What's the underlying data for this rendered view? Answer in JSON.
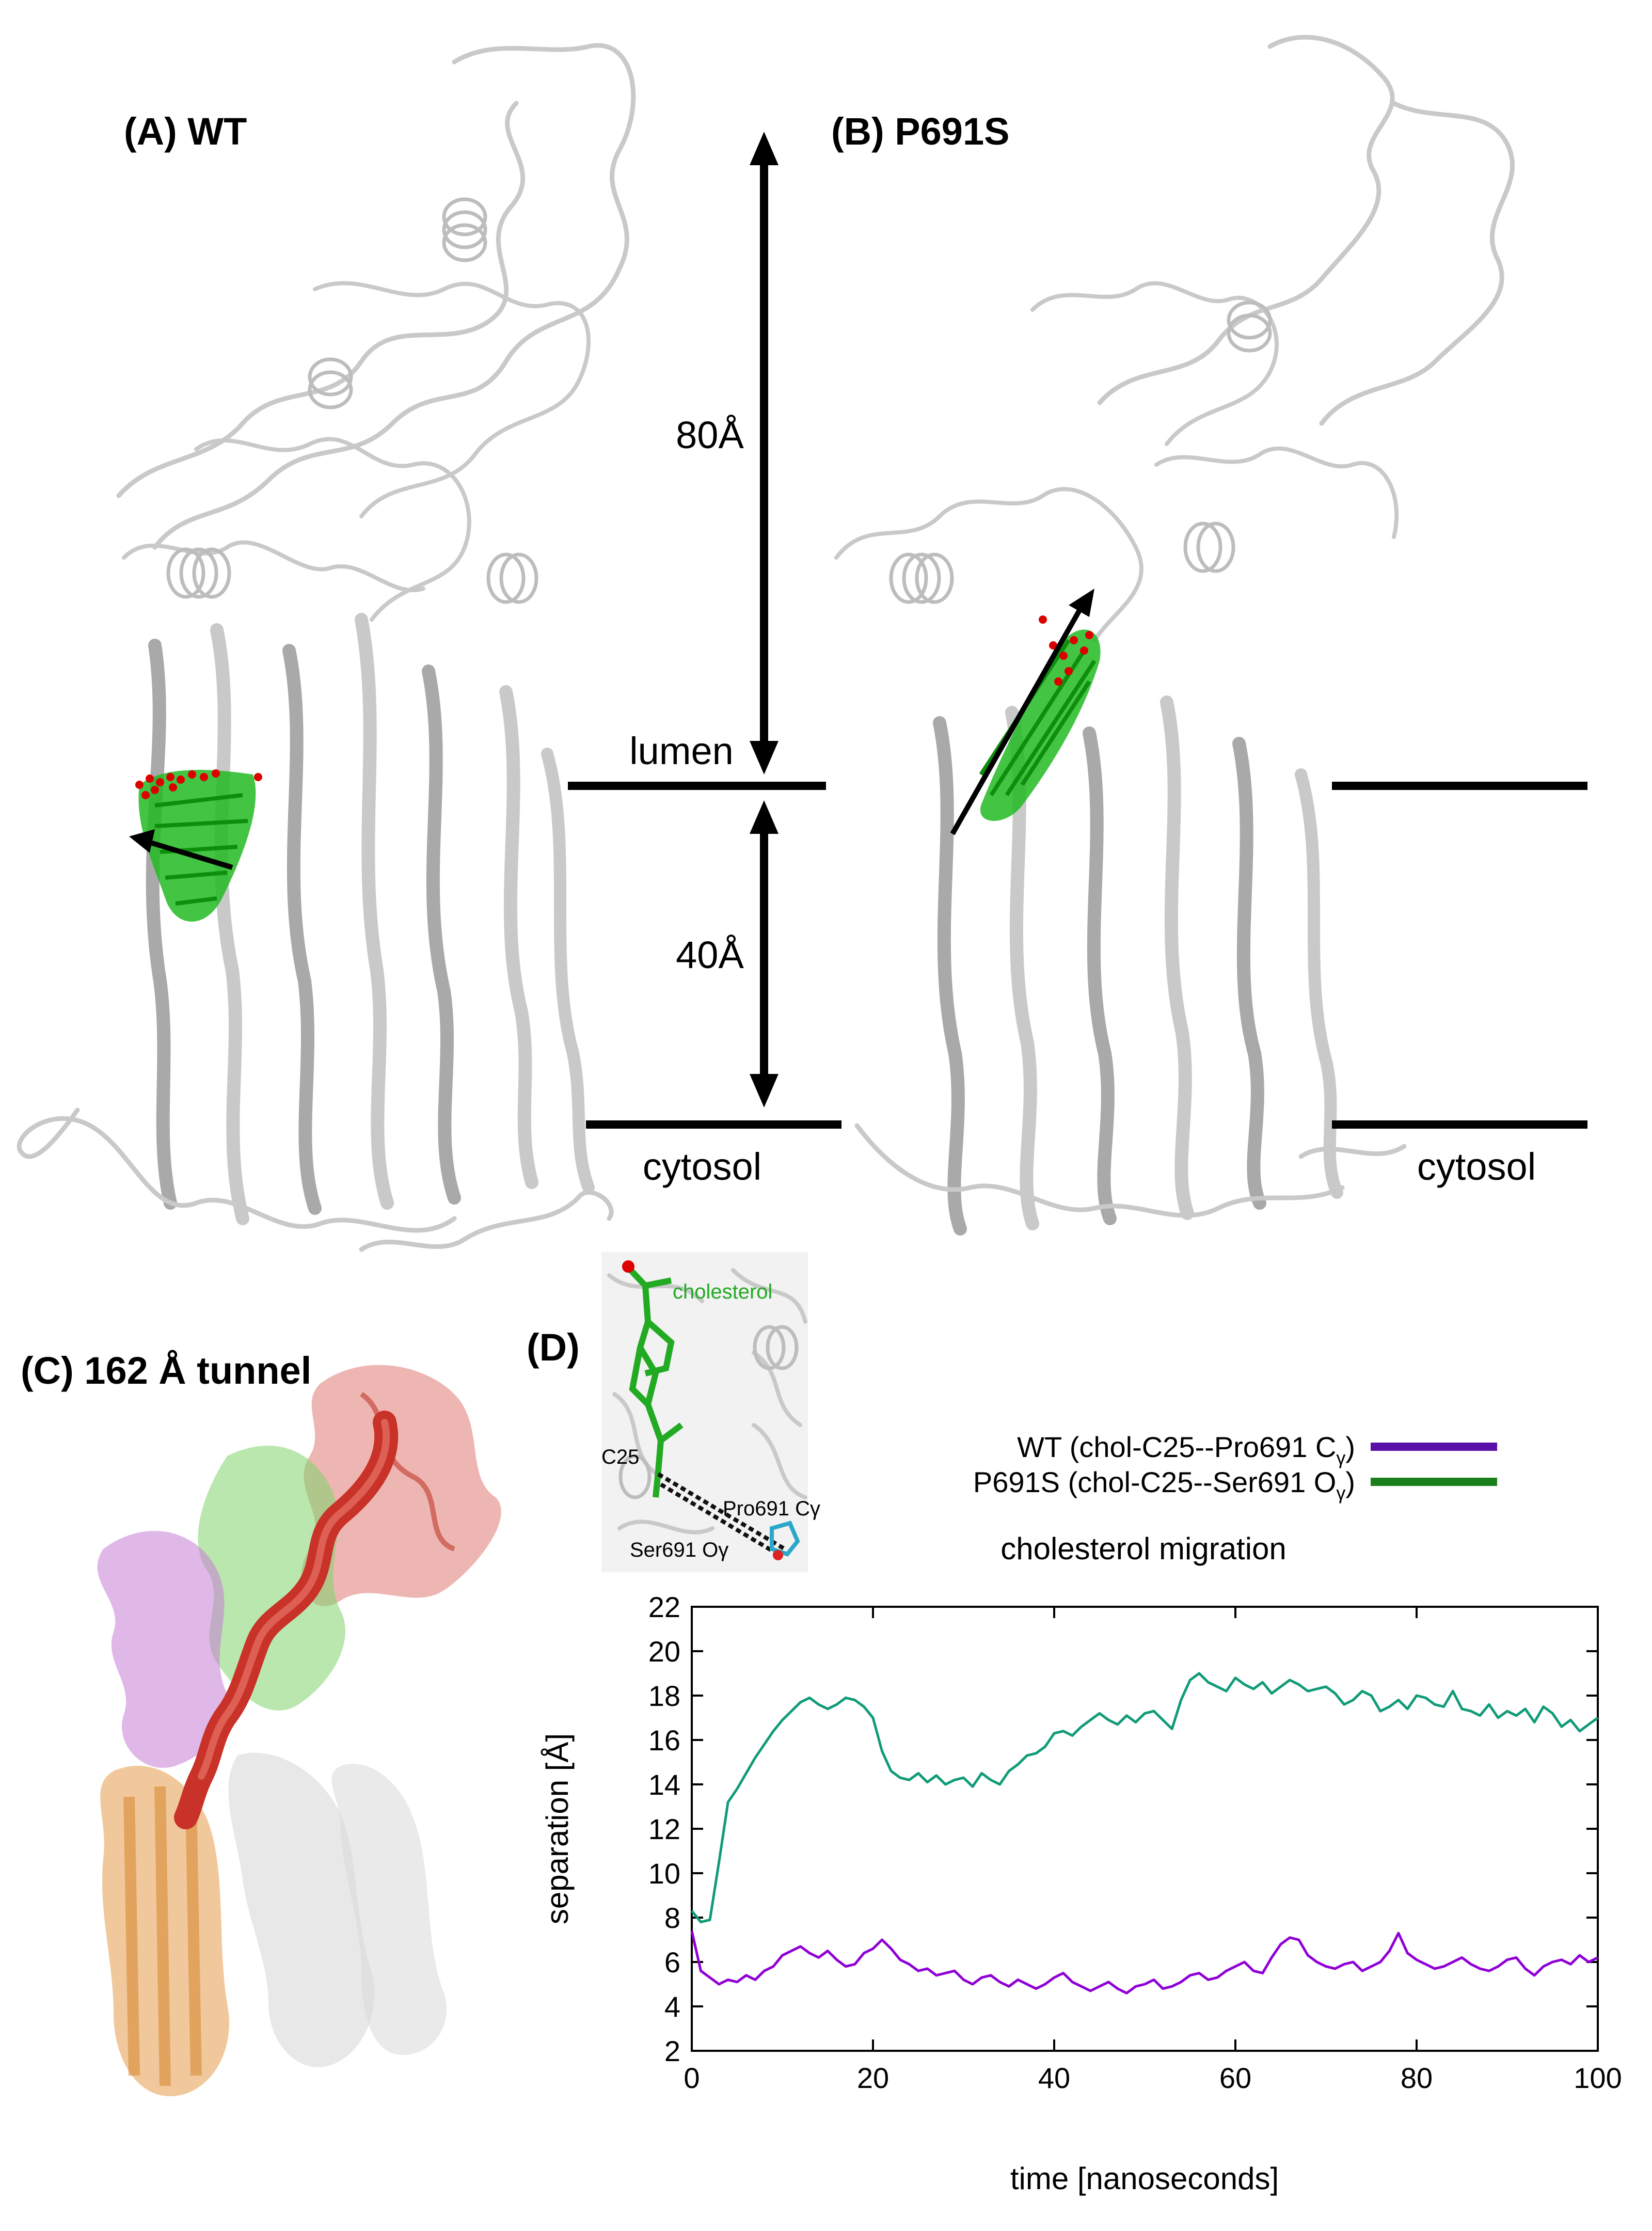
{
  "panels": {
    "a": {
      "label": "(A)  WT"
    },
    "b": {
      "label": "(B)  P691S"
    },
    "c": {
      "label": "(C) 162 Å tunnel"
    },
    "d": {
      "label": "(D)"
    }
  },
  "annotations": {
    "dist_80": "80Å",
    "dist_40": "40Å",
    "lumen": "lumen",
    "cytosol_left": "cytosol",
    "cytosol_right": "cytosol"
  },
  "inset": {
    "cholesterol": "cholesterol",
    "c25": "C25",
    "pro691": "Pro691 Cγ",
    "ser691": "Ser691 Oγ"
  },
  "colors": {
    "cholesterol_green": "#22bb22",
    "oxygen_red": "#dd0000",
    "protein_gray": "#c8c8c8",
    "tunnel_red": "#c83228",
    "domain_green": "#66cc55",
    "domain_magenta": "#bb66cc",
    "domain_orange": "#e6a458",
    "wt_line": "#8f00d6",
    "p691s_line": "#119b78"
  },
  "chart_data": {
    "type": "line",
    "title": "cholesterol migration",
    "xlabel": "time  [nanoseconds]",
    "ylabel": "separation [Å]",
    "xlim": [
      0,
      100
    ],
    "ylim": [
      2,
      22
    ],
    "xticks": [
      0,
      20,
      40,
      60,
      80,
      100
    ],
    "yticks": [
      2,
      4,
      6,
      8,
      10,
      12,
      14,
      16,
      18,
      20,
      22
    ],
    "grid": false,
    "legend_position": "above plot, right",
    "legend": [
      {
        "prefix": "WT (chol-C25--Pro691 C",
        "sub": "γ",
        "suffix": ")",
        "color": "#5a0fa8"
      },
      {
        "prefix": "P691S (chol-C25--Ser691 O",
        "sub": "γ",
        "suffix": ")",
        "color": "#1a7f1a"
      }
    ],
    "series": [
      {
        "color": "#119b78",
        "x": [
          0,
          1,
          2,
          3,
          4,
          5,
          6,
          7,
          8,
          9,
          10,
          11,
          12,
          13,
          14,
          15,
          16,
          17,
          18,
          19,
          20,
          21,
          22,
          23,
          24,
          25,
          26,
          27,
          28,
          29,
          30,
          31,
          32,
          33,
          34,
          35,
          36,
          37,
          38,
          39,
          40,
          41,
          42,
          43,
          44,
          45,
          46,
          47,
          48,
          49,
          50,
          51,
          52,
          53,
          54,
          55,
          56,
          57,
          58,
          59,
          60,
          61,
          62,
          63,
          64,
          65,
          66,
          67,
          68,
          69,
          70,
          71,
          72,
          73,
          74,
          75,
          76,
          77,
          78,
          79,
          80,
          81,
          82,
          83,
          84,
          85,
          86,
          87,
          88,
          89,
          90,
          91,
          92,
          93,
          94,
          95,
          96,
          97,
          98,
          99,
          100
        ],
        "values": [
          8.3,
          7.8,
          7.9,
          10.5,
          13.2,
          13.8,
          14.5,
          15.2,
          15.8,
          16.4,
          16.9,
          17.3,
          17.7,
          17.9,
          17.6,
          17.4,
          17.6,
          17.9,
          17.8,
          17.5,
          17.0,
          15.5,
          14.6,
          14.3,
          14.2,
          14.5,
          14.1,
          14.4,
          14.0,
          14.2,
          14.3,
          13.9,
          14.5,
          14.2,
          14.0,
          14.6,
          14.9,
          15.3,
          15.4,
          15.7,
          16.3,
          16.4,
          16.2,
          16.6,
          16.9,
          17.2,
          16.9,
          16.7,
          17.1,
          16.8,
          17.2,
          17.3,
          16.9,
          16.5,
          17.8,
          18.7,
          19.0,
          18.6,
          18.4,
          18.2,
          18.8,
          18.5,
          18.3,
          18.6,
          18.1,
          18.4,
          18.7,
          18.5,
          18.2,
          18.3,
          18.4,
          18.1,
          17.6,
          17.8,
          18.2,
          18.0,
          17.3,
          17.5,
          17.8,
          17.4,
          18.0,
          17.9,
          17.6,
          17.5,
          18.2,
          17.4,
          17.3,
          17.1,
          17.6,
          17.0,
          17.3,
          17.1,
          17.4,
          16.8,
          17.5,
          17.2,
          16.6,
          16.9,
          16.4,
          16.7,
          17.0
        ]
      },
      {
        "color": "#8f00d6",
        "x": [
          0,
          1,
          2,
          3,
          4,
          5,
          6,
          7,
          8,
          9,
          10,
          11,
          12,
          13,
          14,
          15,
          16,
          17,
          18,
          19,
          20,
          21,
          22,
          23,
          24,
          25,
          26,
          27,
          28,
          29,
          30,
          31,
          32,
          33,
          34,
          35,
          36,
          37,
          38,
          39,
          40,
          41,
          42,
          43,
          44,
          45,
          46,
          47,
          48,
          49,
          50,
          51,
          52,
          53,
          54,
          55,
          56,
          57,
          58,
          59,
          60,
          61,
          62,
          63,
          64,
          65,
          66,
          67,
          68,
          69,
          70,
          71,
          72,
          73,
          74,
          75,
          76,
          77,
          78,
          79,
          80,
          81,
          82,
          83,
          84,
          85,
          86,
          87,
          88,
          89,
          90,
          91,
          92,
          93,
          94,
          95,
          96,
          97,
          98,
          99,
          100
        ],
        "values": [
          7.4,
          5.6,
          5.3,
          5.0,
          5.2,
          5.1,
          5.4,
          5.2,
          5.6,
          5.8,
          6.3,
          6.5,
          6.7,
          6.4,
          6.2,
          6.5,
          6.1,
          5.8,
          5.9,
          6.4,
          6.6,
          7.0,
          6.6,
          6.1,
          5.9,
          5.6,
          5.7,
          5.4,
          5.5,
          5.6,
          5.2,
          5.0,
          5.3,
          5.4,
          5.1,
          4.9,
          5.2,
          5.0,
          4.8,
          5.0,
          5.3,
          5.5,
          5.1,
          4.9,
          4.7,
          4.9,
          5.1,
          4.8,
          4.6,
          4.9,
          5.0,
          5.2,
          4.8,
          4.9,
          5.1,
          5.4,
          5.5,
          5.2,
          5.3,
          5.6,
          5.8,
          6.0,
          5.6,
          5.5,
          6.2,
          6.8,
          7.1,
          7.0,
          6.3,
          6.0,
          5.8,
          5.7,
          5.9,
          6.0,
          5.6,
          5.8,
          6.0,
          6.5,
          7.3,
          6.4,
          6.1,
          5.9,
          5.7,
          5.8,
          6.0,
          6.2,
          5.9,
          5.7,
          5.6,
          5.8,
          6.1,
          6.2,
          5.7,
          5.4,
          5.8,
          6.0,
          6.1,
          5.9,
          6.3,
          6.0,
          6.2
        ]
      }
    ]
  }
}
